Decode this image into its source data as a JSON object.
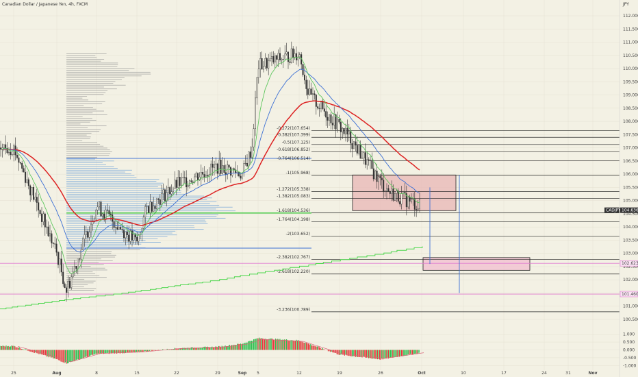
{
  "header": {
    "title": "Canadian Dollar / Japanese Yen, 4h, FXCM",
    "axis_unit": "JPY"
  },
  "chart_data": [
    {
      "type": "candlestick",
      "symbol": "CADJPY",
      "title": "Canadian Dollar / Japanese Yen, 4h, FXCM",
      "ylabel": "JPY",
      "ylim": [
        100.3,
        112.2
      ],
      "y_ticks": [
        "112.000",
        "111.500",
        "111.000",
        "110.500",
        "110.000",
        "109.500",
        "109.000",
        "108.500",
        "108.000",
        "107.500",
        "107.000",
        "106.500",
        "106.000",
        "105.500",
        "105.000",
        "104.500",
        "104.000",
        "103.500",
        "103.000",
        "102.500",
        "102.000",
        "101.500",
        "101.000",
        "100.500"
      ],
      "x_ticks": [
        "25",
        "Aug",
        "8",
        "15",
        "22",
        "29",
        "Sep",
        "5",
        "12",
        "19",
        "26",
        "Oct",
        "10",
        "17",
        "24",
        "31",
        "Nov"
      ],
      "price_path": [
        [
          "25",
          107.0
        ],
        [
          "Aug",
          103.0
        ],
        [
          "Aug",
          101.6
        ],
        [
          "8",
          104.8
        ],
        [
          "15",
          103.4
        ],
        [
          "15",
          104.7
        ],
        [
          "22",
          105.6
        ],
        [
          "29",
          106.3
        ],
        [
          "Sep",
          106.0
        ],
        [
          "Sep",
          107.0
        ],
        [
          "5",
          110.1
        ],
        [
          "12",
          110.6
        ],
        [
          "12",
          109.0
        ],
        [
          "19",
          107.8
        ],
        [
          "19",
          107.4
        ],
        [
          "26",
          105.7
        ],
        [
          "26",
          105.3
        ],
        [
          "Oct",
          104.8
        ]
      ],
      "last_price": "104.636",
      "fib_levels": [
        {
          "label": "-0.272(107.654)",
          "value": 107.654
        },
        {
          "label": "-0.382(107.399)",
          "value": 107.399
        },
        {
          "label": "-0.5(107.125)",
          "value": 107.125
        },
        {
          "label": "-0.618(106.852)",
          "value": 106.852
        },
        {
          "label": "-0.764(106.514)",
          "value": 106.514
        },
        {
          "label": "-1(105.968)",
          "value": 105.968
        },
        {
          "label": "-1.272(105.338)",
          "value": 105.338
        },
        {
          "label": "-1.382(105.083)",
          "value": 105.083
        },
        {
          "label": "-1.618(104.536)",
          "value": 104.536
        },
        {
          "label": "-1.764(104.198)",
          "value": 104.198
        },
        {
          "label": "-2(103.652)",
          "value": 103.652
        },
        {
          "label": "-2.382(102.767)",
          "value": 102.767
        },
        {
          "label": "-2.618(102.220)",
          "value": 102.22
        },
        {
          "label": "-3.236(100.789)",
          "value": 100.789
        }
      ],
      "horizontal_lines": [
        {
          "value": 106.6,
          "color": "#3b6fd4"
        },
        {
          "value": 103.2,
          "color": "#3b6fd4"
        },
        {
          "value": 104.53,
          "color": "#44cc44"
        },
        {
          "value": 102.623,
          "color": "#e07ad0"
        },
        {
          "value": 101.46,
          "color": "#e07ad0"
        }
      ],
      "price_labels": [
        {
          "text": "CADJPY",
          "value": 104.636
        },
        {
          "text": "104.636",
          "value": 104.636
        },
        {
          "text": "102.623",
          "value": 102.623
        },
        {
          "text": "101.460",
          "value": 101.46
        }
      ],
      "rectangles": [
        {
          "from": "22",
          "to": "Oct",
          "y_top": 105.97,
          "y_bottom": 104.62,
          "color": "#e8b5b5"
        },
        {
          "from": "Oct",
          "to": "17",
          "y_top": 102.84,
          "y_bottom": 102.36,
          "color": "#f2bdd0"
        }
      ],
      "moving_averages": [
        {
          "color": "#dd2222"
        },
        {
          "color": "#3b6fd4"
        },
        {
          "color": "#5cc65c"
        }
      ],
      "volume_profile": {
        "from_value": 101.6,
        "to_value": 110.6,
        "poc": 104.6
      }
    },
    {
      "type": "bar",
      "panel": "oscillator",
      "ylim": [
        -1.1,
        1.1
      ],
      "y_ticks": [
        "1.000",
        "0.500",
        "0.000",
        "-0.500",
        "-1.000"
      ],
      "values_path": [
        [
          "25",
          0.25
        ],
        [
          "Aug",
          -0.6
        ],
        [
          "Aug",
          -0.85
        ],
        [
          "8",
          -0.25
        ],
        [
          "15",
          -0.15
        ],
        [
          "22",
          0.1
        ],
        [
          "29",
          0.2
        ],
        [
          "Sep",
          0.4
        ],
        [
          "5",
          0.75
        ],
        [
          "12",
          0.6
        ],
        [
          "19",
          -0.3
        ],
        [
          "26",
          -0.6
        ],
        [
          "Oct",
          -0.2
        ]
      ],
      "signal_color": "#d9657a"
    }
  ]
}
